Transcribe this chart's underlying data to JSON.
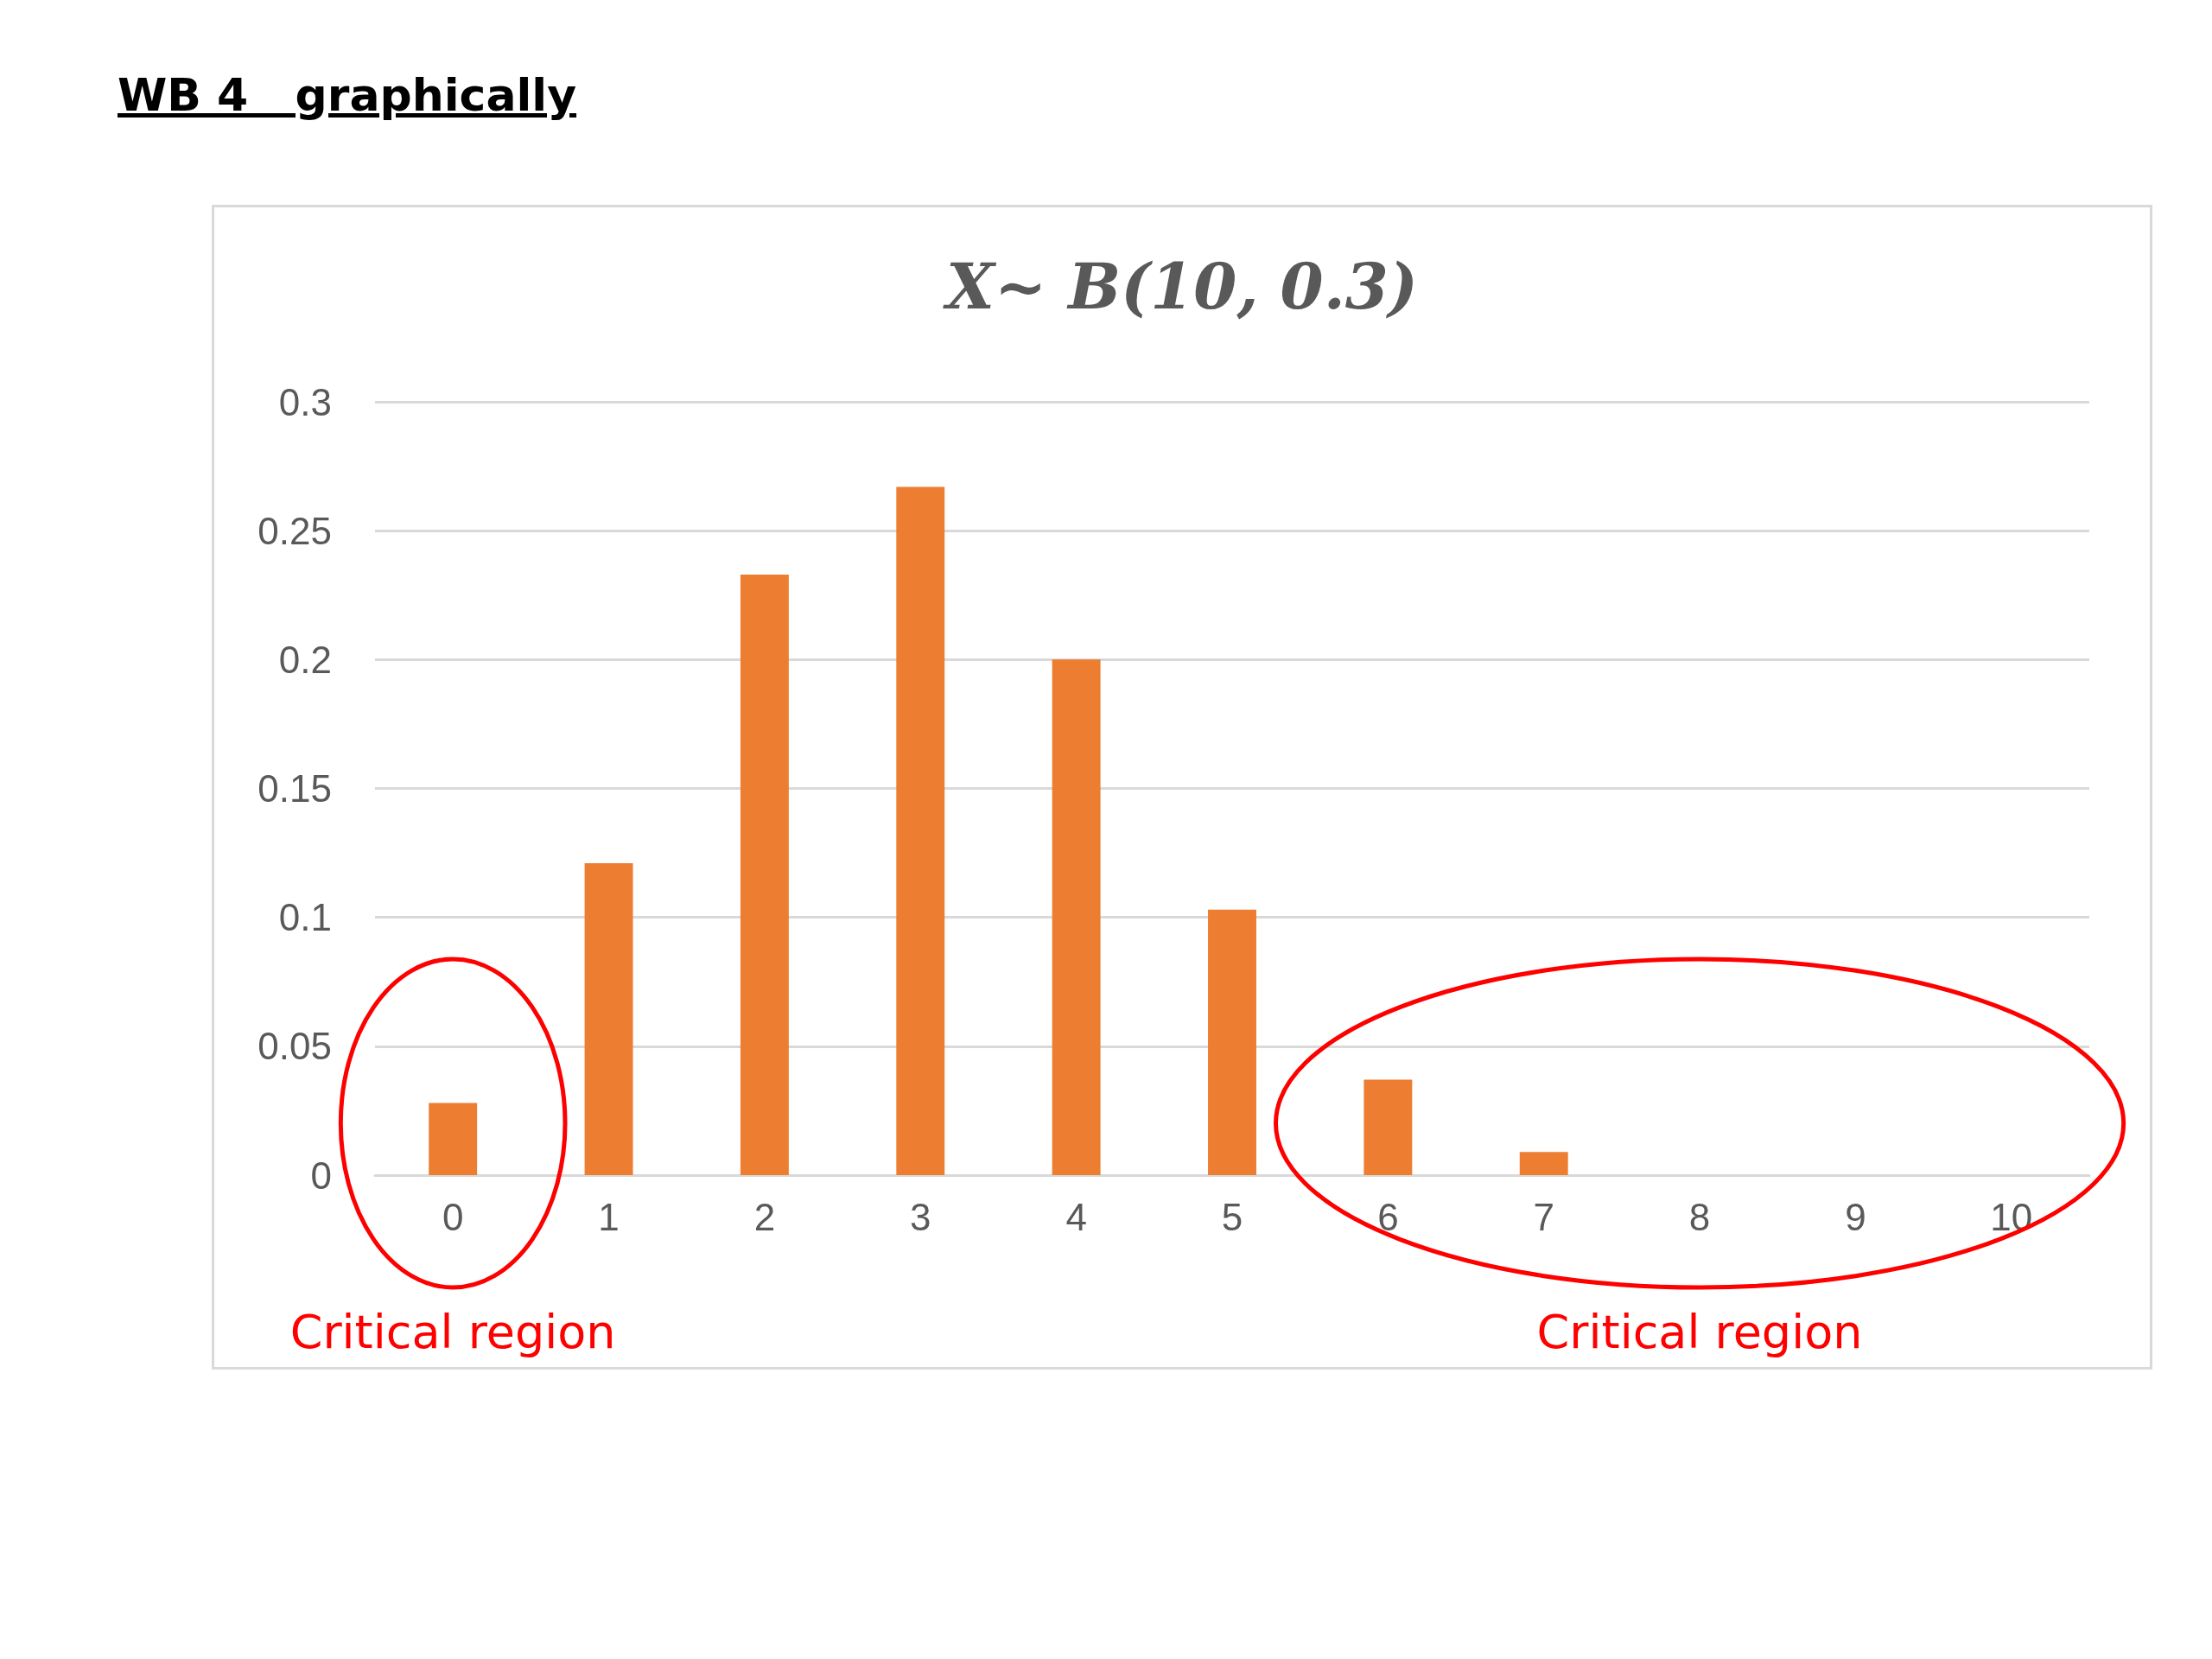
{
  "chart_data": {
    "type": "bar",
    "title": "WB 4   graphically",
    "subtitle": "X~ B(10, 0.3)",
    "categories": [
      "0",
      "1",
      "2",
      "3",
      "4",
      "5",
      "6",
      "7",
      "8",
      "9",
      "10"
    ],
    "values": [
      0.028,
      0.121,
      0.233,
      0.267,
      0.2,
      0.103,
      0.037,
      0.009,
      null,
      null,
      null
    ],
    "color": "#ed7d31",
    "ylim": [
      0,
      0.3
    ],
    "yticks": [
      0,
      0.05,
      0.1,
      0.15,
      0.2,
      0.25,
      0.3
    ],
    "grid": "y",
    "annotations": [
      "Critical region",
      "Critical region"
    ]
  }
}
